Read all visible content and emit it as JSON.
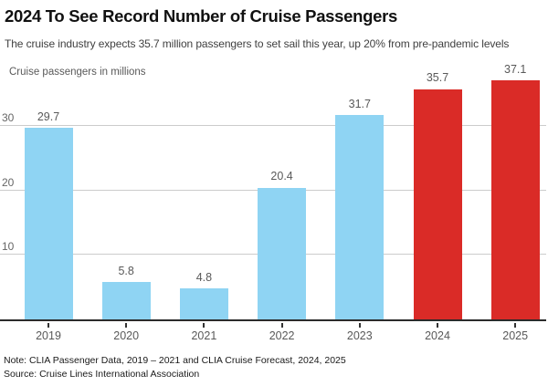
{
  "header": {
    "title": "2024 To See Record Number of Cruise Passengers",
    "subtitle": "The cruise industry expects 35.7 million passengers to set sail this year, up 20% from pre-pandemic levels"
  },
  "chart_data": {
    "type": "bar",
    "title": "2024 To See Record Number of Cruise Passengers",
    "subtitle": "The cruise industry expects 35.7 million passengers to set sail this year, up 20% from pre-pandemic levels",
    "ylabel": "Cruise passengers in millions",
    "xlabel": "",
    "categories": [
      "2019",
      "2020",
      "2021",
      "2022",
      "2023",
      "2024",
      "2025"
    ],
    "values": [
      29.7,
      5.8,
      4.8,
      20.4,
      31.7,
      35.7,
      37.1
    ],
    "data_labels": [
      "29.7",
      "5.8",
      "4.8",
      "20.4",
      "31.7",
      "35.7",
      "37.1"
    ],
    "bar_colors": [
      "#8fd4f3",
      "#8fd4f3",
      "#8fd4f3",
      "#8fd4f3",
      "#8fd4f3",
      "#da2b27",
      "#da2b27"
    ],
    "colors": {
      "historical_blue": "#8fd4f3",
      "forecast_red": "#da2b27"
    },
    "yticks": [
      10,
      20,
      30
    ],
    "ylim": [
      0,
      37.1
    ],
    "grid": true,
    "legend": false
  },
  "footer": {
    "note": "Note: CLIA Passenger Data, 2019 – 2021 and CLIA Cruise Forecast, 2024, 2025",
    "source": "Source: Cruise Lines International Association"
  }
}
